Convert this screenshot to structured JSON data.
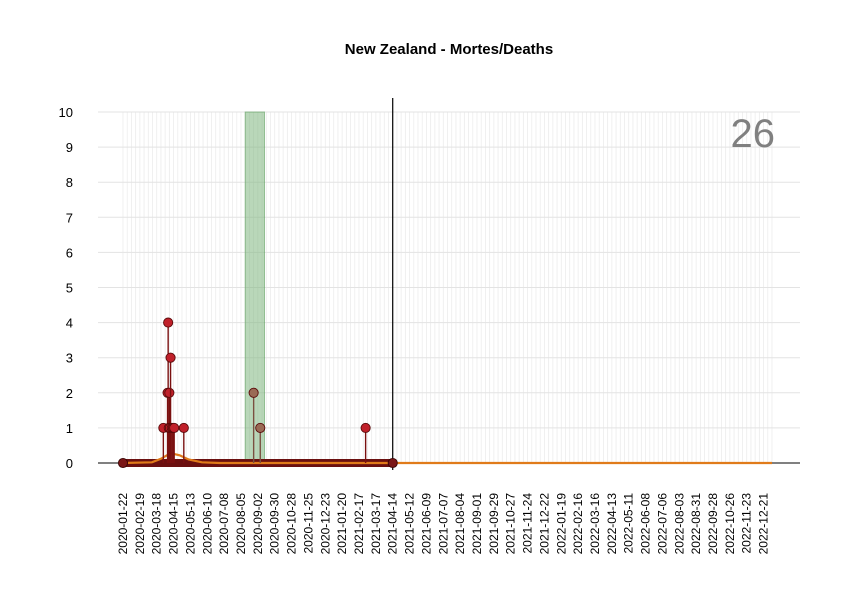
{
  "chart_data": {
    "type": "line",
    "title": "New Zealand - Mortes/Deaths",
    "annotation": "26",
    "xlabel": "",
    "ylabel": "",
    "x_range": [
      "2020-01-22",
      "2023-01-04"
    ],
    "ylim": [
      0,
      10
    ],
    "y_ticks": [
      0,
      1,
      2,
      3,
      4,
      5,
      6,
      7,
      8,
      9,
      10
    ],
    "x_ticks": [
      "2020-01-22",
      "2020-02-19",
      "2020-03-18",
      "2020-04-15",
      "2020-05-13",
      "2020-06-10",
      "2020-07-08",
      "2020-08-05",
      "2020-09-02",
      "2020-09-30",
      "2020-10-28",
      "2020-11-25",
      "2020-12-23",
      "2021-01-20",
      "2021-02-17",
      "2021-03-17",
      "2021-04-14",
      "2021-05-12",
      "2021-06-09",
      "2021-07-07",
      "2021-08-04",
      "2021-09-01",
      "2021-09-29",
      "2021-10-27",
      "2021-11-24",
      "2021-12-22",
      "2022-01-19",
      "2022-02-16",
      "2022-03-16",
      "2022-04-13",
      "2022-05-11",
      "2022-06-08",
      "2022-07-06",
      "2022-08-03",
      "2022-08-31",
      "2022-09-28",
      "2022-10-26",
      "2022-11-23",
      "2022-12-21"
    ],
    "grid": true,
    "observed_end": "2021-04-14",
    "shaded_region": {
      "start": "2020-08-12",
      "end": "2020-09-13",
      "color": "#7fb77f"
    },
    "series": [
      {
        "kind": "daily-deaths-lollipop",
        "color": "#c0202a",
        "points": [
          {
            "x": "2020-03-29",
            "y": 1
          },
          {
            "x": "2020-04-05",
            "y": 2
          },
          {
            "x": "2020-04-06",
            "y": 4
          },
          {
            "x": "2020-04-07",
            "y": 1
          },
          {
            "x": "2020-04-08",
            "y": 2
          },
          {
            "x": "2020-04-09",
            "y": 1
          },
          {
            "x": "2020-04-10",
            "y": 3
          },
          {
            "x": "2020-04-12",
            "y": 1
          },
          {
            "x": "2020-04-14",
            "y": 1
          },
          {
            "x": "2020-04-16",
            "y": 1
          },
          {
            "x": "2020-05-02",
            "y": 1
          },
          {
            "x": "2021-02-28",
            "y": 1
          }
        ]
      },
      {
        "kind": "highlighted-deaths-lollipop",
        "color": "#9a6a55",
        "points": [
          {
            "x": "2020-08-26",
            "y": 2
          },
          {
            "x": "2020-09-06",
            "y": 1
          }
        ]
      },
      {
        "kind": "smoothed-trend",
        "color": "#e07b1a",
        "points": [
          {
            "x": "2020-01-22",
            "y": 0
          },
          {
            "x": "2020-03-10",
            "y": 0.02
          },
          {
            "x": "2020-03-25",
            "y": 0.12
          },
          {
            "x": "2020-04-10",
            "y": 0.28
          },
          {
            "x": "2020-04-25",
            "y": 0.22
          },
          {
            "x": "2020-05-10",
            "y": 0.1
          },
          {
            "x": "2020-06-01",
            "y": 0.02
          },
          {
            "x": "2020-07-01",
            "y": 0
          },
          {
            "x": "2023-01-04",
            "y": 0
          }
        ]
      }
    ],
    "colors": {
      "zero_band": "#6b1010",
      "zero_marker": "#7a1616",
      "trend": "#e07b1a",
      "shade": "#7fb77f",
      "annotation": "#808080"
    }
  }
}
